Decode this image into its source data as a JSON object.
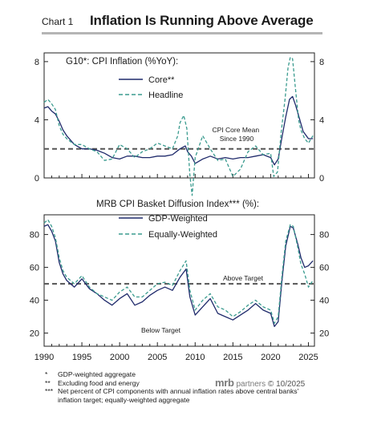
{
  "header": {
    "chart_number": "Chart 1",
    "title": "Inflation Is Running Above Average"
  },
  "footnotes": [
    {
      "mark": "*",
      "text": "GDP-weighted aggregate"
    },
    {
      "mark": "**",
      "text": "Excluding food and energy"
    },
    {
      "mark": "***",
      "text": "Net percent of CPI components with annual inflation rates above central banks' inflation target; equally-weighted aggregate"
    }
  ],
  "brand": {
    "logo": "mrb",
    "name": "partners",
    "copyright": "© 10/2025"
  },
  "colors": {
    "navy": "#1f2a6b",
    "teal": "#3a9b8f",
    "reference": "#555555",
    "axis": "#222222"
  },
  "chart_data": [
    {
      "type": "line",
      "title": "G10*:  CPI Inflation (%YoY):",
      "xlim": [
        1990,
        2025.8
      ],
      "ylim": [
        0,
        8.6
      ],
      "yticks": [
        0,
        4,
        8
      ],
      "grid": false,
      "legend_placement": "top-left",
      "reference_line": {
        "value": 2.0,
        "label": "CPI Core Mean Since 1990",
        "style": "dashed"
      },
      "series": [
        {
          "name": "Core**",
          "color": "#1f2a6b",
          "style": "solid",
          "points": [
            [
              1990,
              4.8
            ],
            [
              1990.5,
              4.9
            ],
            [
              1991,
              4.6
            ],
            [
              1991.5,
              4.4
            ],
            [
              1992,
              3.9
            ],
            [
              1992.5,
              3.3
            ],
            [
              1993,
              2.9
            ],
            [
              1993.5,
              2.6
            ],
            [
              1994,
              2.3
            ],
            [
              1995,
              2.0
            ],
            [
              1996,
              2.0
            ],
            [
              1997,
              1.9
            ],
            [
              1998,
              1.7
            ],
            [
              1999,
              1.4
            ],
            [
              2000,
              1.3
            ],
            [
              2001,
              1.5
            ],
            [
              2002,
              1.5
            ],
            [
              2003,
              1.4
            ],
            [
              2004,
              1.4
            ],
            [
              2005,
              1.5
            ],
            [
              2006,
              1.5
            ],
            [
              2007,
              1.6
            ],
            [
              2008,
              2.0
            ],
            [
              2008.7,
              2.2
            ],
            [
              2009,
              1.8
            ],
            [
              2009.5,
              1.5
            ],
            [
              2010,
              1.0
            ],
            [
              2011,
              1.3
            ],
            [
              2012,
              1.5
            ],
            [
              2013,
              1.3
            ],
            [
              2014,
              1.4
            ],
            [
              2015,
              1.3
            ],
            [
              2016,
              1.4
            ],
            [
              2017,
              1.4
            ],
            [
              2018,
              1.5
            ],
            [
              2019,
              1.6
            ],
            [
              2020,
              1.4
            ],
            [
              2020.5,
              0.9
            ],
            [
              2021,
              1.3
            ],
            [
              2021.5,
              2.8
            ],
            [
              2022,
              4.2
            ],
            [
              2022.5,
              5.4
            ],
            [
              2022.9,
              5.6
            ],
            [
              2023.3,
              5.0
            ],
            [
              2023.8,
              4.1
            ],
            [
              2024.3,
              3.2
            ],
            [
              2025,
              2.7
            ],
            [
              2025.6,
              2.7
            ]
          ]
        },
        {
          "name": "Headline",
          "color": "#3a9b8f",
          "style": "dashed",
          "points": [
            [
              1990,
              5.2
            ],
            [
              1990.5,
              5.4
            ],
            [
              1991,
              5.1
            ],
            [
              1991.5,
              4.7
            ],
            [
              1992,
              3.6
            ],
            [
              1992.5,
              3.0
            ],
            [
              1993,
              2.7
            ],
            [
              1993.5,
              2.5
            ],
            [
              1994,
              2.3
            ],
            [
              1995,
              2.3
            ],
            [
              1996,
              2.0
            ],
            [
              1997,
              1.8
            ],
            [
              1998,
              1.2
            ],
            [
              1999,
              1.3
            ],
            [
              2000,
              2.3
            ],
            [
              2001,
              2.0
            ],
            [
              2002,
              1.4
            ],
            [
              2003,
              1.8
            ],
            [
              2004,
              2.0
            ],
            [
              2005,
              2.4
            ],
            [
              2006,
              2.2
            ],
            [
              2007,
              2.0
            ],
            [
              2007.7,
              2.9
            ],
            [
              2008,
              3.8
            ],
            [
              2008.5,
              4.3
            ],
            [
              2008.9,
              3.4
            ],
            [
              2009.3,
              0.2
            ],
            [
              2009.6,
              -1.2
            ],
            [
              2010,
              1.4
            ],
            [
              2011,
              2.9
            ],
            [
              2012,
              2.0
            ],
            [
              2013,
              1.2
            ],
            [
              2014,
              1.3
            ],
            [
              2015,
              0.1
            ],
            [
              2016,
              0.6
            ],
            [
              2017,
              1.8
            ],
            [
              2018,
              2.2
            ],
            [
              2019,
              1.6
            ],
            [
              2020,
              1.7
            ],
            [
              2020.4,
              0.1
            ],
            [
              2020.9,
              0.4
            ],
            [
              2021.4,
              3.2
            ],
            [
              2021.9,
              5.4
            ],
            [
              2022.3,
              7.6
            ],
            [
              2022.6,
              8.3
            ],
            [
              2022.9,
              8.2
            ],
            [
              2023.2,
              6.6
            ],
            [
              2023.7,
              4.0
            ],
            [
              2024,
              3.3
            ],
            [
              2024.5,
              2.7
            ],
            [
              2025,
              2.4
            ],
            [
              2025.6,
              2.9
            ]
          ]
        }
      ]
    },
    {
      "type": "line",
      "title": "MRB CPI Basket Diffusion Index*** (%):",
      "xlim": [
        1990,
        2025.8
      ],
      "ylim": [
        12,
        92
      ],
      "yticks": [
        20,
        40,
        60,
        80
      ],
      "xticks": [
        1990,
        1995,
        2000,
        2005,
        2010,
        2015,
        2020,
        2025
      ],
      "grid": false,
      "legend_placement": "top-left",
      "reference_line": {
        "value": 50,
        "style": "dashed"
      },
      "annotations": [
        "Above Target",
        "Below Target"
      ],
      "series": [
        {
          "name": "GDP-Weighted",
          "color": "#1f2a6b",
          "style": "solid",
          "points": [
            [
              1990,
              85
            ],
            [
              1990.5,
              86
            ],
            [
              1991,
              82
            ],
            [
              1991.5,
              76
            ],
            [
              1992,
              63
            ],
            [
              1992.5,
              56
            ],
            [
              1993,
              52
            ],
            [
              1994,
              48
            ],
            [
              1995,
              53
            ],
            [
              1996,
              47
            ],
            [
              1997,
              44
            ],
            [
              1998,
              40
            ],
            [
              1999,
              37
            ],
            [
              2000,
              41
            ],
            [
              2001,
              44
            ],
            [
              2002,
              37
            ],
            [
              2003,
              39
            ],
            [
              2004,
              43
            ],
            [
              2005,
              46
            ],
            [
              2006,
              48
            ],
            [
              2007,
              46
            ],
            [
              2008,
              54
            ],
            [
              2008.8,
              59
            ],
            [
              2009.3,
              42
            ],
            [
              2010,
              31
            ],
            [
              2011,
              36
            ],
            [
              2012,
              41
            ],
            [
              2013,
              32
            ],
            [
              2014,
              30
            ],
            [
              2015,
              28
            ],
            [
              2016,
              31
            ],
            [
              2017,
              34
            ],
            [
              2018,
              38
            ],
            [
              2019,
              34
            ],
            [
              2020,
              32
            ],
            [
              2020.5,
              24
            ],
            [
              2021,
              27
            ],
            [
              2021.5,
              52
            ],
            [
              2022,
              73
            ],
            [
              2022.6,
              85
            ],
            [
              2023,
              84
            ],
            [
              2023.6,
              74
            ],
            [
              2024,
              66
            ],
            [
              2024.5,
              60
            ],
            [
              2025,
              61
            ],
            [
              2025.6,
              64
            ]
          ]
        },
        {
          "name": "Equally-Weighted",
          "color": "#3a9b8f",
          "style": "dashed",
          "points": [
            [
              1990,
              87
            ],
            [
              1990.5,
              89
            ],
            [
              1991,
              85
            ],
            [
              1991.5,
              78
            ],
            [
              1992,
              66
            ],
            [
              1992.5,
              58
            ],
            [
              1993,
              54
            ],
            [
              1994,
              50
            ],
            [
              1995,
              55
            ],
            [
              1996,
              48
            ],
            [
              1997,
              44
            ],
            [
              1998,
              42
            ],
            [
              1999,
              40
            ],
            [
              2000,
              45
            ],
            [
              2001,
              48
            ],
            [
              2002,
              42
            ],
            [
              2003,
              42
            ],
            [
              2004,
              46
            ],
            [
              2005,
              50
            ],
            [
              2006,
              51
            ],
            [
              2007,
              49
            ],
            [
              2008,
              58
            ],
            [
              2008.8,
              64
            ],
            [
              2009.3,
              46
            ],
            [
              2010,
              34
            ],
            [
              2011,
              40
            ],
            [
              2012,
              44
            ],
            [
              2013,
              36
            ],
            [
              2014,
              34
            ],
            [
              2015,
              30
            ],
            [
              2016,
              33
            ],
            [
              2017,
              37
            ],
            [
              2018,
              40
            ],
            [
              2019,
              36
            ],
            [
              2020,
              34
            ],
            [
              2020.5,
              26
            ],
            [
              2021,
              30
            ],
            [
              2021.5,
              55
            ],
            [
              2022,
              76
            ],
            [
              2022.6,
              86
            ],
            [
              2023,
              85
            ],
            [
              2023.6,
              72
            ],
            [
              2024,
              62
            ],
            [
              2024.5,
              56
            ],
            [
              2025,
              48
            ],
            [
              2025.6,
              52
            ]
          ]
        }
      ]
    }
  ]
}
